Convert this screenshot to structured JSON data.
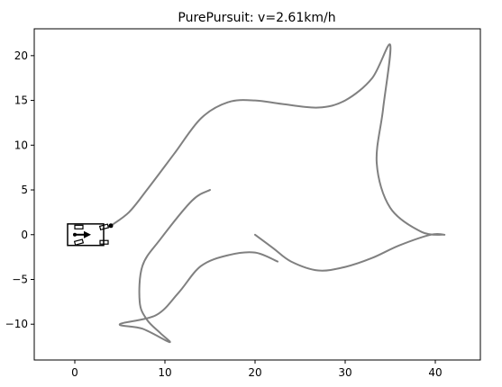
{
  "chart_data": {
    "type": "line",
    "title": "PurePursuit: v=2.61km/h",
    "xlabel": "",
    "ylabel": "",
    "xlim": [
      -4.5,
      45
    ],
    "ylim": [
      -14,
      23
    ],
    "xticks": [
      0,
      10,
      20,
      30,
      40
    ],
    "yticks": [
      -10,
      -5,
      0,
      5,
      10,
      15,
      20
    ],
    "grid": false,
    "path_color": "#808080",
    "vehicle_color": "#000000",
    "series": [
      {
        "points": [
          [
            4,
            1
          ],
          [
            6,
            2.5
          ],
          [
            8,
            5
          ],
          [
            11,
            9
          ],
          [
            14,
            13
          ],
          [
            17,
            14.8
          ],
          [
            20,
            15
          ],
          [
            23,
            14.6
          ],
          [
            27,
            14.2
          ],
          [
            30,
            15
          ],
          [
            33,
            17.5
          ],
          [
            35,
            21.2
          ],
          [
            34.2,
            14
          ],
          [
            33.5,
            8
          ],
          [
            35,
            3
          ],
          [
            38.5,
            0.3
          ],
          [
            41,
            0
          ],
          [
            39.5,
            0
          ],
          [
            36,
            -1.2
          ],
          [
            33,
            -2.6
          ],
          [
            30,
            -3.6
          ],
          [
            27,
            -4
          ],
          [
            24,
            -3
          ],
          [
            22,
            -1.5
          ],
          [
            20,
            0
          ]
        ]
      },
      {
        "points": [
          [
            22.5,
            -3
          ],
          [
            20,
            -2
          ],
          [
            17,
            -2.3
          ],
          [
            14,
            -3.5
          ],
          [
            11.5,
            -6.5
          ],
          [
            9,
            -9
          ],
          [
            5,
            -10
          ],
          [
            7.5,
            -10.5
          ],
          [
            10.5,
            -12
          ],
          [
            9.5,
            -11
          ],
          [
            8,
            -9.5
          ],
          [
            7.2,
            -7.5
          ],
          [
            7.5,
            -3.5
          ],
          [
            9.5,
            -0.5
          ],
          [
            13,
            3.8
          ],
          [
            15,
            5
          ]
        ]
      }
    ],
    "vehicle": {
      "x": 0,
      "y": 0,
      "heading_deg": 0,
      "length": 4,
      "width": 2.4,
      "front_point": [
        4,
        1
      ]
    }
  }
}
